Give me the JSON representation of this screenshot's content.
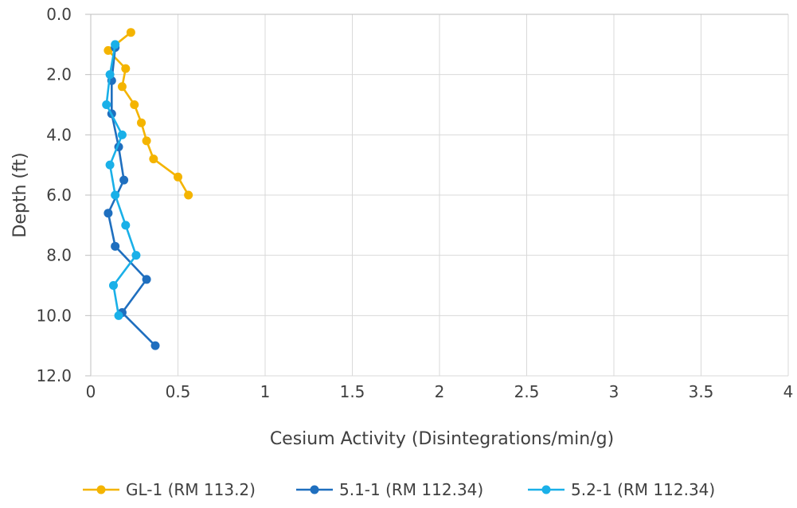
{
  "chart_data": {
    "type": "line",
    "orientation": "depth-profile",
    "title": "",
    "xlabel": "Cesium Activity (Disintegrations/min/g)",
    "ylabel": "Depth (ft)",
    "xlim": [
      0,
      4
    ],
    "ylim": [
      0,
      12
    ],
    "y_inverted": true,
    "x_ticks": [
      "0",
      "0.5",
      "1",
      "1.5",
      "2",
      "2.5",
      "3",
      "3.5",
      "4"
    ],
    "y_ticks": [
      "0.0",
      "2.0",
      "4.0",
      "6.0",
      "8.0",
      "10.0",
      "12.0"
    ],
    "grid": true,
    "legend_position": "bottom",
    "series": [
      {
        "name": "GL-1 (RM 113.2)",
        "color": "#f4b400",
        "points": [
          {
            "x": 0.23,
            "y": 0.6
          },
          {
            "x": 0.1,
            "y": 1.2
          },
          {
            "x": 0.2,
            "y": 1.8
          },
          {
            "x": 0.18,
            "y": 2.4
          },
          {
            "x": 0.25,
            "y": 3.0
          },
          {
            "x": 0.29,
            "y": 3.6
          },
          {
            "x": 0.32,
            "y": 4.2
          },
          {
            "x": 0.36,
            "y": 4.8
          },
          {
            "x": 0.5,
            "y": 5.4
          },
          {
            "x": 0.56,
            "y": 6.0
          }
        ]
      },
      {
        "name": "5.1-1 (RM 112.34)",
        "color": "#1f6fbf",
        "points": [
          {
            "x": 0.14,
            "y": 1.1
          },
          {
            "x": 0.12,
            "y": 2.2
          },
          {
            "x": 0.12,
            "y": 3.3
          },
          {
            "x": 0.16,
            "y": 4.4
          },
          {
            "x": 0.19,
            "y": 5.5
          },
          {
            "x": 0.1,
            "y": 6.6
          },
          {
            "x": 0.14,
            "y": 7.7
          },
          {
            "x": 0.32,
            "y": 8.8
          },
          {
            "x": 0.18,
            "y": 9.9
          },
          {
            "x": 0.37,
            "y": 11.0
          }
        ]
      },
      {
        "name": "5.2-1 (RM 112.34)",
        "color": "#1ab0e8",
        "points": [
          {
            "x": 0.14,
            "y": 1.0
          },
          {
            "x": 0.11,
            "y": 2.0
          },
          {
            "x": 0.09,
            "y": 3.0
          },
          {
            "x": 0.18,
            "y": 4.0
          },
          {
            "x": 0.11,
            "y": 5.0
          },
          {
            "x": 0.14,
            "y": 6.0
          },
          {
            "x": 0.2,
            "y": 7.0
          },
          {
            "x": 0.26,
            "y": 8.0
          },
          {
            "x": 0.13,
            "y": 9.0
          },
          {
            "x": 0.16,
            "y": 10.0
          }
        ]
      }
    ]
  }
}
